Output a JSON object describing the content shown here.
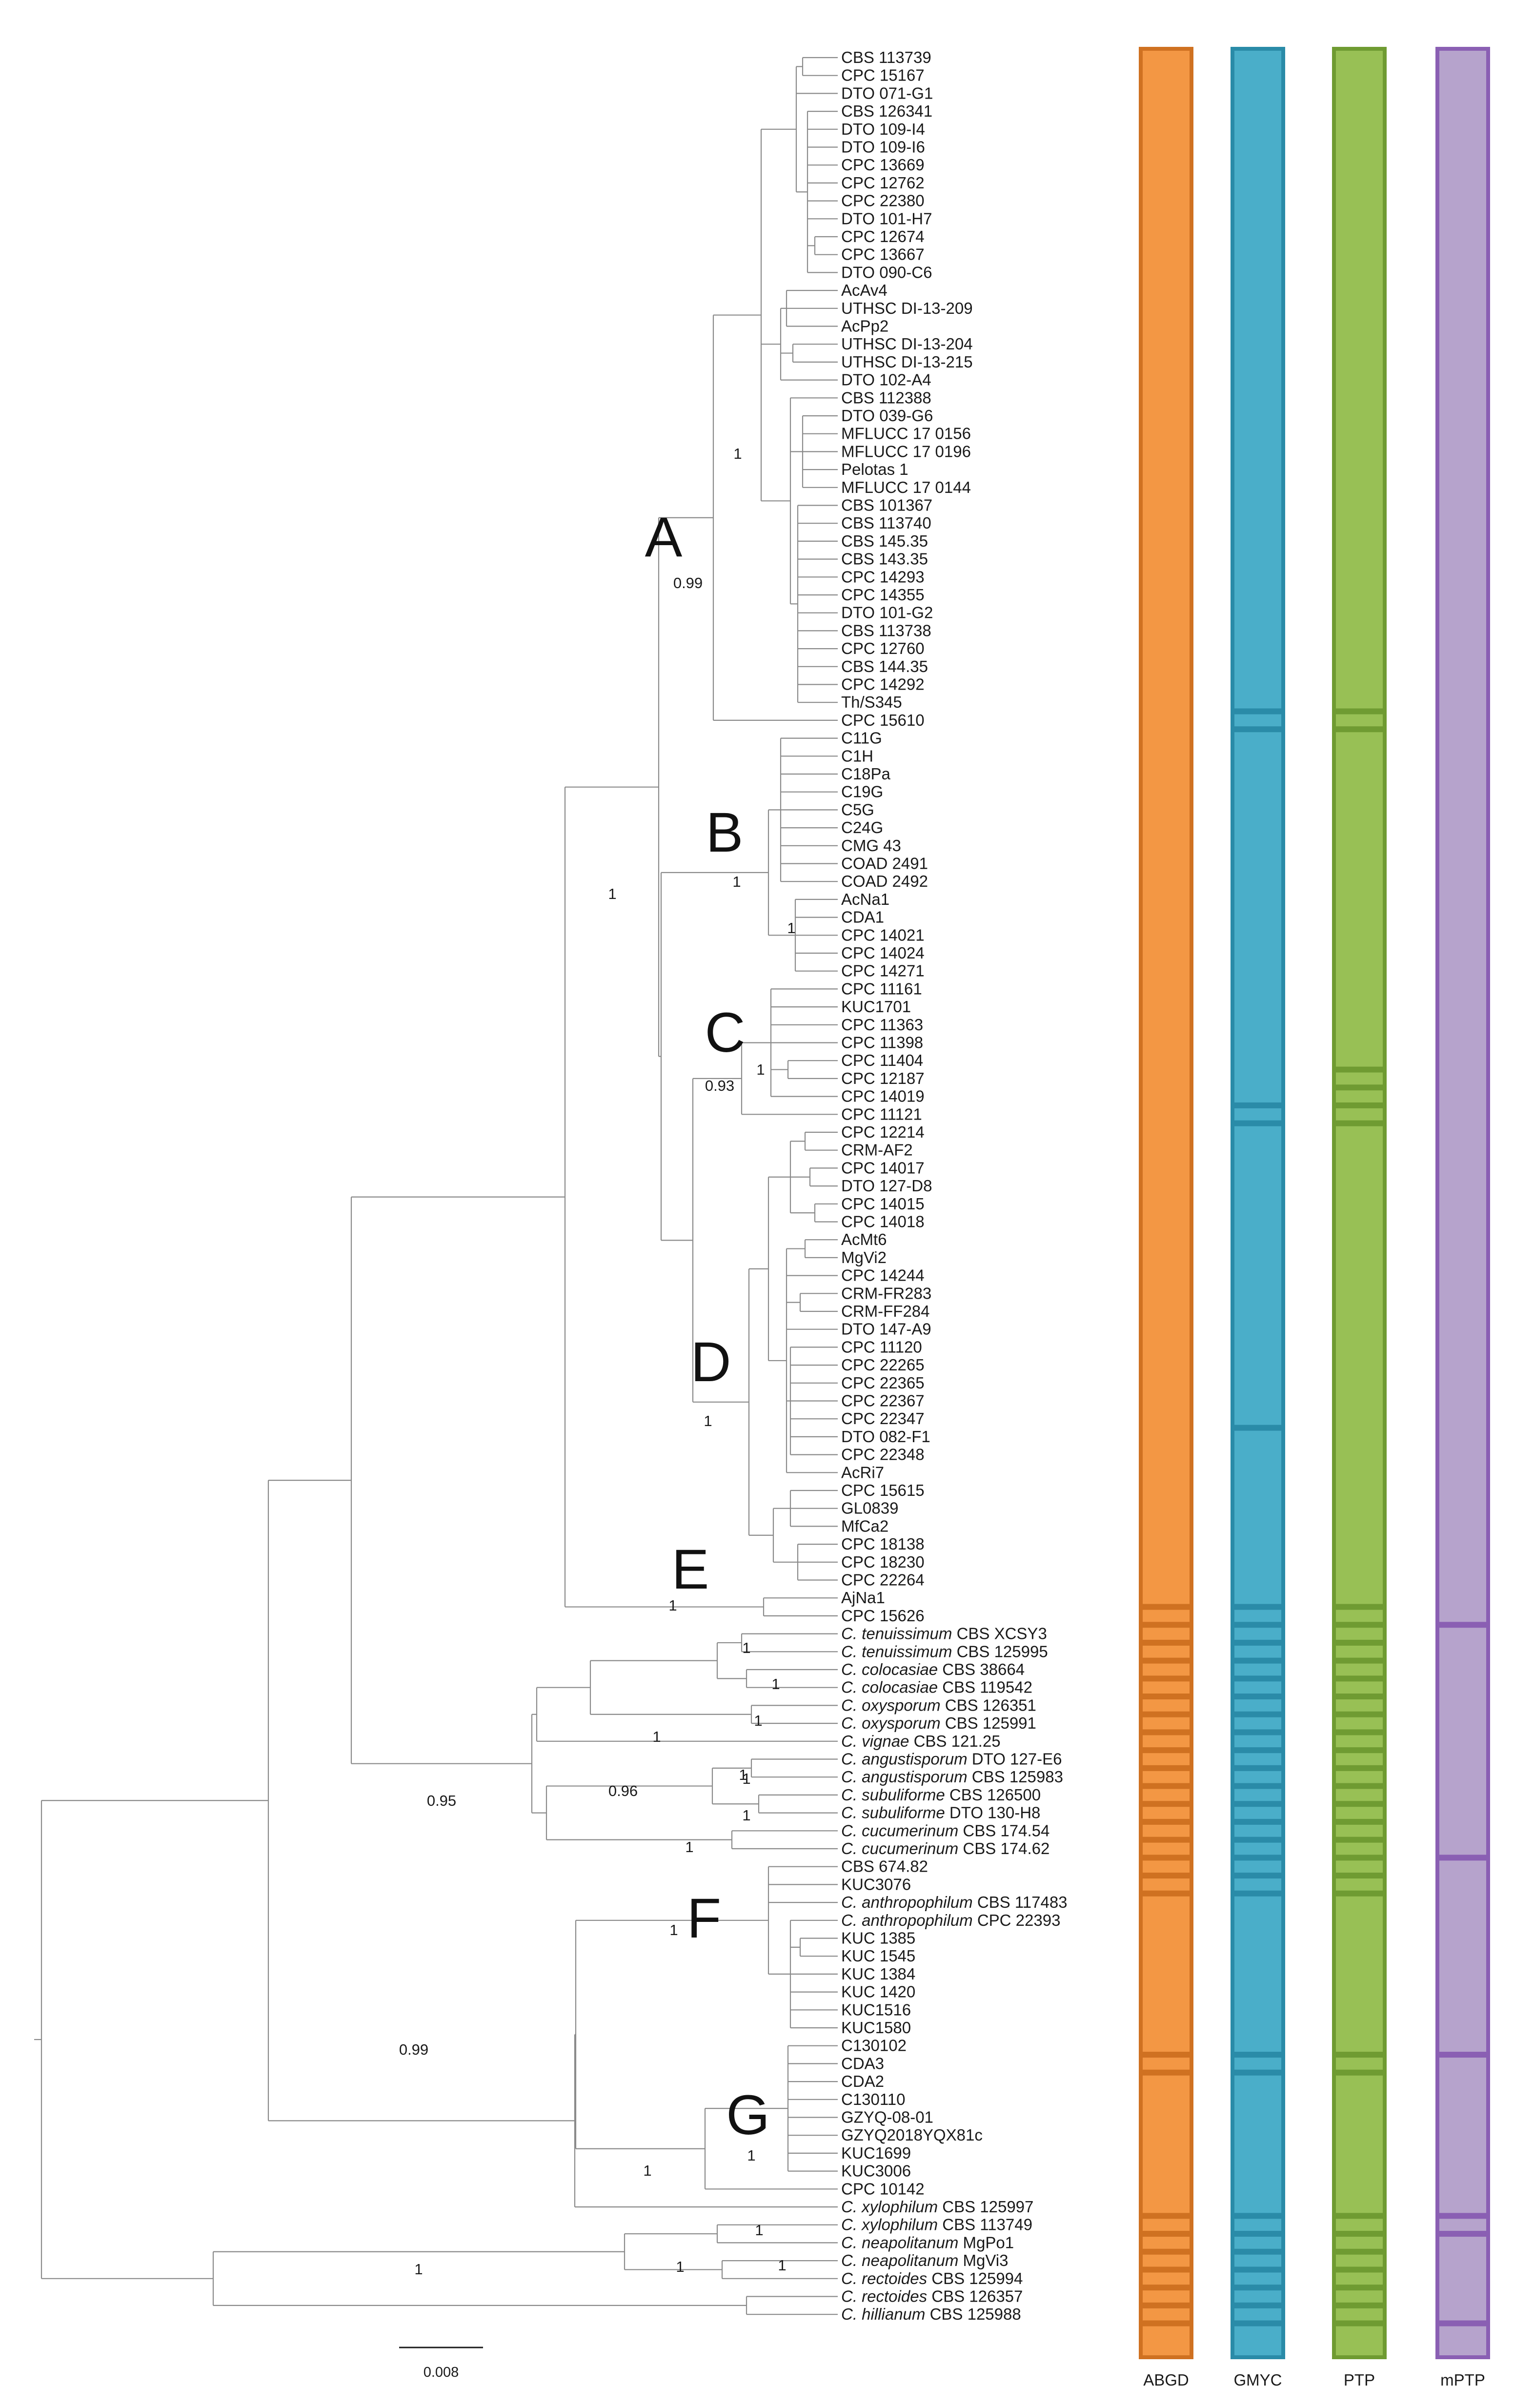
{
  "tips": [
    {
      "text": "CBS 113739"
    },
    {
      "text": "CPC 15167"
    },
    {
      "text": "DTO 071-G1"
    },
    {
      "text": "CBS 126341"
    },
    {
      "text": "DTO 109-I4"
    },
    {
      "text": "DTO 109-I6"
    },
    {
      "text": "CPC 13669"
    },
    {
      "text": "CPC 12762"
    },
    {
      "text": "CPC 22380"
    },
    {
      "text": "DTO 101-H7"
    },
    {
      "text": "CPC 12674"
    },
    {
      "text": "CPC 13667"
    },
    {
      "text": "DTO 090-C6"
    },
    {
      "text": "AcAv4"
    },
    {
      "text": "UTHSC DI-13-209"
    },
    {
      "text": "AcPp2"
    },
    {
      "text": "UTHSC DI-13-204"
    },
    {
      "text": "UTHSC DI-13-215"
    },
    {
      "text": "DTO 102-A4"
    },
    {
      "text": "CBS 112388"
    },
    {
      "text": "DTO 039-G6"
    },
    {
      "text": "MFLUCC 17 0156"
    },
    {
      "text": "MFLUCC 17 0196"
    },
    {
      "text": "Pelotas 1"
    },
    {
      "text": "MFLUCC 17 0144"
    },
    {
      "text": "CBS 101367"
    },
    {
      "text": "CBS 113740"
    },
    {
      "text": "CBS 145.35"
    },
    {
      "text": "CBS 143.35"
    },
    {
      "text": "CPC 14293"
    },
    {
      "text": "CPC 14355"
    },
    {
      "text": "DTO 101-G2"
    },
    {
      "text": "CBS 113738"
    },
    {
      "text": "CPC 12760"
    },
    {
      "text": "CBS 144.35"
    },
    {
      "text": "CPC 14292"
    },
    {
      "text": "Th/S345"
    },
    {
      "text": "CPC 15610"
    },
    {
      "text": "C11G"
    },
    {
      "text": "C1H"
    },
    {
      "text": "C18Pa"
    },
    {
      "text": "C19G"
    },
    {
      "text": "C5G"
    },
    {
      "text": "C24G"
    },
    {
      "text": "CMG 43"
    },
    {
      "text": "COAD 2491"
    },
    {
      "text": "COAD 2492"
    },
    {
      "text": "AcNa1"
    },
    {
      "text": "CDA1"
    },
    {
      "text": "CPC 14021"
    },
    {
      "text": "CPC 14024"
    },
    {
      "text": "CPC 14271"
    },
    {
      "text": "CPC 11161"
    },
    {
      "text": "KUC1701"
    },
    {
      "text": "CPC 11363"
    },
    {
      "text": "CPC 11398"
    },
    {
      "text": "CPC 11404"
    },
    {
      "text": "CPC 12187"
    },
    {
      "text": "CPC 14019"
    },
    {
      "text": "CPC 11121"
    },
    {
      "text": "CPC 12214"
    },
    {
      "text": "CRM-AF2"
    },
    {
      "text": "CPC 14017"
    },
    {
      "text": "DTO 127-D8"
    },
    {
      "text": "CPC 14015"
    },
    {
      "text": "CPC 14018"
    },
    {
      "text": "AcMt6"
    },
    {
      "text": "MgVi2"
    },
    {
      "text": "CPC 14244"
    },
    {
      "text": "CRM-FR283"
    },
    {
      "text": "CRM-FF284"
    },
    {
      "text": "DTO 147-A9"
    },
    {
      "text": "CPC 11120"
    },
    {
      "text": "CPC 22265"
    },
    {
      "text": "CPC 22365"
    },
    {
      "text": "CPC 22367"
    },
    {
      "text": "CPC 22347"
    },
    {
      "text": "DTO 082-F1"
    },
    {
      "text": "CPC 22348"
    },
    {
      "text": "AcRi7"
    },
    {
      "text": "CPC 15615"
    },
    {
      "text": "GL0839"
    },
    {
      "text": "MfCa2"
    },
    {
      "text": "CPC 18138"
    },
    {
      "text": "CPC 18230"
    },
    {
      "text": "CPC 22264"
    },
    {
      "text": "AjNa1"
    },
    {
      "text": "CPC 15626"
    },
    {
      "sp": "C. tenuissimum",
      "text": "CBS XCSY3"
    },
    {
      "sp": "C. tenuissimum",
      "text": "CBS 125995"
    },
    {
      "sp": "C. colocasiae",
      "text": "CBS 38664"
    },
    {
      "sp": "C. colocasiae",
      "text": "CBS 119542"
    },
    {
      "sp": "C. oxysporum",
      "text": "CBS 126351"
    },
    {
      "sp": "C. oxysporum",
      "text": "CBS 125991"
    },
    {
      "sp": "C. vignae",
      "text": "CBS 121.25"
    },
    {
      "sp": "C. angustisporum",
      "text": "DTO 127-E6"
    },
    {
      "sp": "C. angustisporum",
      "text": "CBS 125983"
    },
    {
      "sp": "C. subuliforme",
      "text": "CBS 126500"
    },
    {
      "sp": "C. subuliforme",
      "text": "DTO 130-H8"
    },
    {
      "sp": "C. cucumerinum",
      "text": "CBS 174.54"
    },
    {
      "sp": "C. cucumerinum",
      "text": "CBS 174.62"
    },
    {
      "text": "CBS 674.82"
    },
    {
      "text": "KUC3076"
    },
    {
      "sp": "C. anthropophilum",
      "text": "CBS 117483"
    },
    {
      "sp": "C. anthropophilum",
      "text": "CPC 22393"
    },
    {
      "text": "KUC 1385"
    },
    {
      "text": "KUC 1545"
    },
    {
      "text": "KUC 1384"
    },
    {
      "text": "KUC 1420"
    },
    {
      "text": "KUC1516"
    },
    {
      "text": "KUC1580"
    },
    {
      "text": "C130102"
    },
    {
      "text": "CDA3"
    },
    {
      "text": "CDA2"
    },
    {
      "text": "C130110"
    },
    {
      "text": "GZYQ-08-01"
    },
    {
      "text": "GZYQ2018YQX81c"
    },
    {
      "text": "KUC1699"
    },
    {
      "text": "KUC3006"
    },
    {
      "text": "CPC 10142"
    },
    {
      "sp": "C. xylophilum",
      "text": "CBS 125997"
    },
    {
      "sp": "C. xylophilum",
      "text": "CBS 113749"
    },
    {
      "sp": "C. neapolitanum",
      "text": "MgPo1"
    },
    {
      "sp": "C. neapolitanum",
      "text": "MgVi3"
    },
    {
      "sp": "C. rectoides",
      "text": "CBS 125994"
    },
    {
      "sp": "C. rectoides",
      "text": "CBS 126357"
    },
    {
      "sp": "C. hillianum",
      "text": "CBS 125988"
    }
  ],
  "clades": [
    {
      "label": "A",
      "tip": 27
    },
    {
      "label": "B",
      "tip": 42
    },
    {
      "label": "C",
      "tip": 57
    },
    {
      "label": "D",
      "tip": 71
    },
    {
      "label": "E",
      "tip": 83
    },
    {
      "label": "F",
      "tip": 105
    },
    {
      "label": "G",
      "tip": 116
    }
  ],
  "supports": [
    {
      "value": "1",
      "tip": 22
    },
    {
      "value": "0.99",
      "tip": 30
    },
    {
      "value": "1",
      "tip": 45
    },
    {
      "value": "1",
      "tip": 48
    },
    {
      "value": "1",
      "tip": 55
    },
    {
      "value": "0.93",
      "tip": 57
    },
    {
      "value": "1",
      "tip": 63
    },
    {
      "value": "1",
      "tip": 74
    },
    {
      "value": "1",
      "tip": 84
    },
    {
      "value": "1",
      "tip": 88
    },
    {
      "value": "1",
      "tip": 89
    },
    {
      "value": "1",
      "tip": 90
    },
    {
      "value": "1",
      "tip": 91
    },
    {
      "value": "1",
      "tip": 93
    },
    {
      "value": "1",
      "tip": 98
    },
    {
      "value": "0.95",
      "tip": 98
    },
    {
      "value": "0.96",
      "tip": 98
    },
    {
      "value": "1",
      "tip": 100
    },
    {
      "value": "1",
      "tip": 101
    },
    {
      "value": "1",
      "tip": 105
    },
    {
      "value": "0.99",
      "tip": 111
    },
    {
      "value": "1",
      "tip": 118
    },
    {
      "value": "1",
      "tip": 116
    },
    {
      "value": "1",
      "tip": 122
    },
    {
      "value": "1",
      "tip": 124
    },
    {
      "value": "1",
      "tip": 125
    },
    {
      "value": "1",
      "tip": 126
    }
  ],
  "delimitation": [
    {
      "name": "ABGD",
      "color": "#f39744",
      "border": "#cf7121",
      "cuts": [
        87,
        88,
        89,
        90,
        91,
        92,
        93,
        94,
        95,
        96,
        97,
        98,
        99,
        100,
        101,
        102,
        103,
        112,
        113,
        121,
        122,
        123,
        124,
        125,
        126,
        127
      ]
    },
    {
      "name": "GMYC",
      "color": "#4aaec9",
      "border": "#2a8ba8",
      "cuts": [
        37,
        38,
        59,
        60,
        77,
        87,
        88,
        89,
        90,
        91,
        92,
        93,
        94,
        95,
        96,
        97,
        98,
        99,
        100,
        101,
        102,
        103,
        112,
        113,
        121,
        122,
        123,
        124,
        125,
        126,
        127
      ]
    },
    {
      "name": "PTP",
      "color": "#98c055",
      "border": "#6f9b32",
      "cuts": [
        37,
        38,
        57,
        58,
        59,
        60,
        87,
        88,
        89,
        90,
        91,
        92,
        93,
        94,
        95,
        96,
        97,
        98,
        99,
        100,
        101,
        102,
        103,
        112,
        113,
        121,
        122,
        123,
        124,
        125,
        126,
        127
      ]
    },
    {
      "name": "mPTP",
      "color": "#b6a3cc",
      "border": "#8a5fb3",
      "cuts": [
        88,
        101,
        112,
        121,
        122,
        127
      ]
    }
  ],
  "scale_bar": {
    "label": "0.008"
  }
}
